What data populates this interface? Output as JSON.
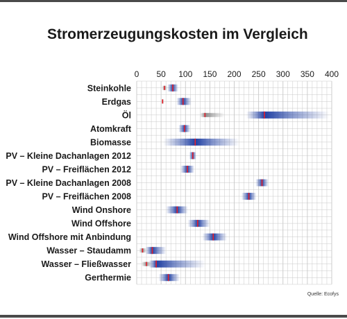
{
  "chart_data": {
    "type": "range-bar",
    "title": "Stromerzeugungskosten im Vergleich",
    "source": "Quelle: Ecofys",
    "xlim": [
      0,
      400
    ],
    "xticks": [
      0,
      50,
      100,
      150,
      200,
      250,
      300,
      350,
      400
    ],
    "grid": true,
    "categories": [
      "Steinkohle",
      "Erdgas",
      "Öl",
      "Atomkraft",
      "Biomasse",
      "PV – Kleine Dachanlagen 2012",
      "PV – Freiflächen 2012",
      "PV – Kleine Dachanlagen 2008",
      "PV – Freiflächen 2008",
      "Wind Onshore",
      "Wind Offshore",
      "Wind Offshore mit Anbindung",
      "Wasser – Staudamm",
      "Wasser – Fließwasser",
      "Gerthermie"
    ],
    "ranges": [
      [
        {
          "min": 52,
          "max": 62,
          "mid": 57,
          "tone": "grey"
        },
        {
          "min": 63,
          "max": 85,
          "mid": 74,
          "tone": "blue"
        }
      ],
      [
        {
          "min": 51,
          "max": 56,
          "mid": 53,
          "tone": "grey"
        },
        {
          "min": 82,
          "max": 112,
          "mid": 95,
          "tone": "blue"
        }
      ],
      [
        {
          "min": 130,
          "max": 180,
          "mid": 140,
          "tone": "grey"
        },
        {
          "min": 225,
          "max": 395,
          "mid": 262,
          "tone": "blue"
        }
      ],
      [
        {
          "min": 86,
          "max": 110,
          "mid": 98,
          "tone": "blue"
        }
      ],
      [
        {
          "min": 55,
          "max": 210,
          "mid": 120,
          "tone": "blue"
        }
      ],
      [
        {
          "min": 108,
          "max": 122,
          "mid": 115,
          "tone": "blue"
        }
      ],
      [
        {
          "min": 90,
          "max": 118,
          "mid": 104,
          "tone": "blue"
        }
      ],
      [
        {
          "min": 244,
          "max": 270,
          "mid": 257,
          "tone": "blue"
        }
      ],
      [
        {
          "min": 215,
          "max": 245,
          "mid": 230,
          "tone": "blue"
        }
      ],
      [
        {
          "min": 60,
          "max": 105,
          "mid": 83,
          "tone": "blue"
        }
      ],
      [
        {
          "min": 105,
          "max": 150,
          "mid": 125,
          "tone": "blue"
        }
      ],
      [
        {
          "min": 135,
          "max": 185,
          "mid": 157,
          "tone": "blue"
        }
      ],
      [
        {
          "min": 5,
          "max": 20,
          "mid": 12,
          "tone": "grey"
        },
        {
          "min": 18,
          "max": 60,
          "mid": 32,
          "tone": "blue"
        }
      ],
      [
        {
          "min": 10,
          "max": 30,
          "mid": 20,
          "tone": "grey"
        },
        {
          "min": 25,
          "max": 140,
          "mid": 40,
          "tone": "blue"
        }
      ],
      [
        {
          "min": 45,
          "max": 88,
          "mid": 65,
          "tone": "blue"
        }
      ]
    ],
    "colors": {
      "bar": "#1f3fa3",
      "grey": "#8a8a8a",
      "marker": "#e8202a",
      "grid": "#c8c8c8",
      "text": "#1a1a1a"
    }
  }
}
